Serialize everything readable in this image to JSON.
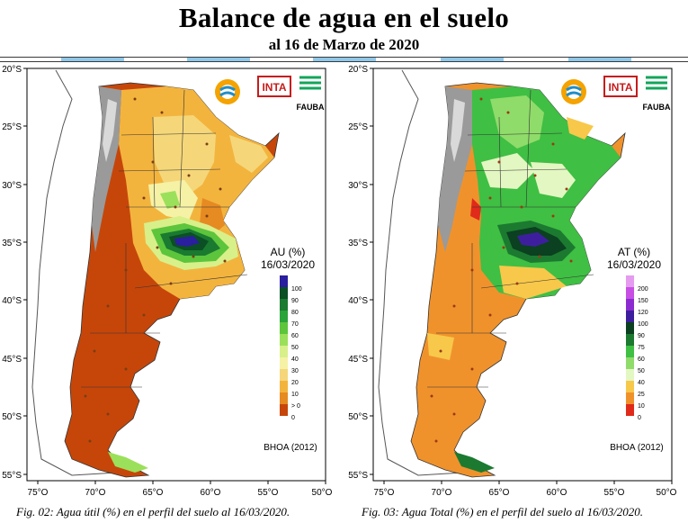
{
  "header": {
    "title": "Balance de agua en el suelo",
    "subtitle": "al 16 de Marzo de 2020"
  },
  "axes": {
    "lat_labels": [
      "20°S",
      "25°S",
      "30°S",
      "35°S",
      "40°S",
      "45°S",
      "50°S",
      "55°S"
    ],
    "lon_labels": [
      "75°O",
      "70°O",
      "65°O",
      "60°O",
      "55°O",
      "50°O"
    ]
  },
  "logos": {
    "inta": "INTA",
    "fauba": "FAUBA"
  },
  "maps": [
    {
      "legend_title": "AU (%)",
      "legend_date": "16/03/2020",
      "legend_items": [
        {
          "label": "100",
          "color": "#2a1f9e"
        },
        {
          "label": "90",
          "color": "#0b4f24"
        },
        {
          "label": "80",
          "color": "#1a7a30"
        },
        {
          "label": "70",
          "color": "#2aa338"
        },
        {
          "label": "60",
          "color": "#5cc53c"
        },
        {
          "label": "50",
          "color": "#9be05a"
        },
        {
          "label": "40",
          "color": "#d8f08a"
        },
        {
          "label": "30",
          "color": "#f5f2a6"
        },
        {
          "label": "20",
          "color": "#f5d77a"
        },
        {
          "label": "10",
          "color": "#f3b43e"
        },
        {
          "label": "> 0",
          "color": "#e68a22"
        },
        {
          "label": "0",
          "color": "#c6460a"
        }
      ],
      "source": "BHOA (2012)",
      "caption": "Fig. 02: Agua útil (%) en el perfil del suelo al 16/03/2020."
    },
    {
      "legend_title": "AT (%)",
      "legend_date": "16/03/2020",
      "legend_items": [
        {
          "label": "200",
          "color": "#e59bf0"
        },
        {
          "label": "150",
          "color": "#c74fe3"
        },
        {
          "label": "120",
          "color": "#8b2bd0"
        },
        {
          "label": "100",
          "color": "#3d1f9e"
        },
        {
          "label": "90",
          "color": "#0b4020"
        },
        {
          "label": "75",
          "color": "#1b7a30"
        },
        {
          "label": "60",
          "color": "#3fbf43"
        },
        {
          "label": "50",
          "color": "#8fdc6a"
        },
        {
          "label": "40",
          "color": "#e3f7c2"
        },
        {
          "label": "25",
          "color": "#f8c84a"
        },
        {
          "label": "10",
          "color": "#f0922c"
        },
        {
          "label": "0",
          "color": "#e02a1a"
        }
      ],
      "source": "BHOA (2012)",
      "caption": "Fig. 03: Agua Total (%) en el perfil del suelo al 16/03/2020."
    }
  ]
}
